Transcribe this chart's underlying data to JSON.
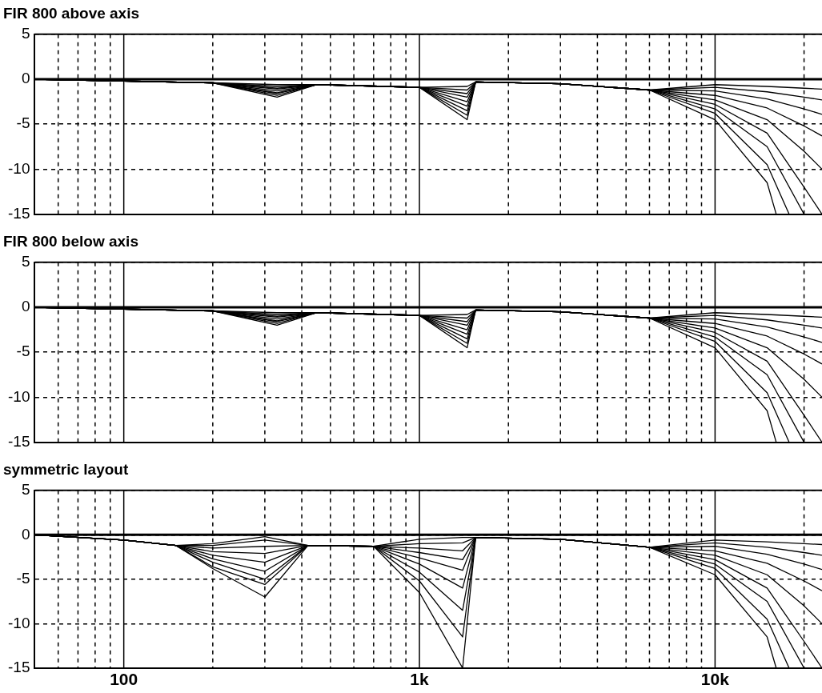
{
  "chart_data": [
    {
      "type": "line",
      "title": "FIR 800 above axis",
      "log": "x",
      "grid": true,
      "tick_labels": "y",
      "xlim": [
        50,
        23000
      ],
      "ylim": [
        -15,
        5
      ],
      "yticks": [
        5,
        0,
        -5,
        -10,
        -15
      ],
      "xticks": [
        {
          "value": 60,
          "label": null
        },
        {
          "value": 70,
          "label": null
        },
        {
          "value": 80,
          "label": null
        },
        {
          "value": 90,
          "label": null
        },
        {
          "value": 100,
          "label": null
        },
        {
          "value": 200,
          "label": null
        },
        {
          "value": 300,
          "label": null
        },
        {
          "value": 400,
          "label": null
        },
        {
          "value": 500,
          "label": null
        },
        {
          "value": 600,
          "label": null
        },
        {
          "value": 700,
          "label": null
        },
        {
          "value": 800,
          "label": null
        },
        {
          "value": 900,
          "label": null
        },
        {
          "value": 1000,
          "label": null
        },
        {
          "value": 2000,
          "label": null
        },
        {
          "value": 3000,
          "label": null
        },
        {
          "value": 4000,
          "label": null
        },
        {
          "value": 5000,
          "label": null
        },
        {
          "value": 6000,
          "label": null
        },
        {
          "value": 7000,
          "label": null
        },
        {
          "value": 8000,
          "label": null
        },
        {
          "value": 9000,
          "label": null
        },
        {
          "value": 10000,
          "label": null
        },
        {
          "value": 20000,
          "label": null
        }
      ],
      "ref_lines": [
        {
          "axis": "y",
          "value": 0,
          "color": "#000000"
        }
      ],
      "series": [
        {
          "color": "#000000",
          "x": [
            50,
            100,
            200,
            330,
            450,
            1000,
            1450,
            1550,
            3000,
            6000,
            10000,
            15000,
            20000,
            23000
          ],
          "values": [
            0,
            -0.2,
            -0.4,
            -0.6,
            -0.6,
            -0.9,
            -0.8,
            -0.3,
            -0.5,
            -1.2,
            -0.6,
            -0.8,
            -1.0,
            -1.1
          ]
        },
        {
          "color": "#000000",
          "x": [
            50,
            100,
            200,
            330,
            450,
            1000,
            1450,
            1550,
            3000,
            6000,
            10000,
            15000,
            20000,
            23000
          ],
          "values": [
            0,
            -0.2,
            -0.4,
            -0.8,
            -0.6,
            -0.9,
            -1.2,
            -0.3,
            -0.5,
            -1.2,
            -0.9,
            -1.4,
            -2.0,
            -2.3
          ]
        },
        {
          "color": "#000000",
          "x": [
            50,
            100,
            200,
            330,
            450,
            1000,
            1450,
            1550,
            3000,
            6000,
            10000,
            15000,
            20000,
            23000
          ],
          "values": [
            0,
            -0.2,
            -0.4,
            -1.0,
            -0.6,
            -0.9,
            -1.6,
            -0.3,
            -0.5,
            -1.2,
            -1.3,
            -2.2,
            -3.3,
            -3.9
          ]
        },
        {
          "color": "#000000",
          "x": [
            50,
            100,
            200,
            330,
            450,
            1000,
            1450,
            1550,
            3000,
            6000,
            10000,
            15000,
            20000,
            23000
          ],
          "values": [
            0,
            -0.2,
            -0.4,
            -1.1,
            -0.6,
            -0.9,
            -2.0,
            -0.3,
            -0.5,
            -1.2,
            -1.8,
            -3.2,
            -5.2,
            -6.3
          ]
        },
        {
          "color": "#000000",
          "x": [
            50,
            100,
            200,
            330,
            450,
            1000,
            1450,
            1550,
            3000,
            6000,
            10000,
            15000,
            20000,
            23000
          ],
          "values": [
            0,
            -0.2,
            -0.4,
            -1.3,
            -0.6,
            -0.9,
            -2.5,
            -0.3,
            -0.5,
            -1.2,
            -2.3,
            -4.5,
            -8.0,
            -10
          ]
        },
        {
          "color": "#000000",
          "x": [
            50,
            100,
            200,
            330,
            450,
            1000,
            1450,
            1550,
            3000,
            6000,
            10000,
            15000,
            20000,
            23000
          ],
          "values": [
            0,
            -0.2,
            -0.4,
            -1.5,
            -0.6,
            -0.9,
            -3.0,
            -0.3,
            -0.5,
            -1.2,
            -2.8,
            -6.0,
            -12,
            -15
          ]
        },
        {
          "color": "#000000",
          "x": [
            50,
            100,
            200,
            330,
            450,
            1000,
            1450,
            1550,
            3000,
            6000,
            10000,
            15000,
            20000
          ],
          "values": [
            0,
            -0.2,
            -0.4,
            -1.6,
            -0.6,
            -0.9,
            -3.5,
            -0.3,
            -0.5,
            -1.2,
            -3.3,
            -7.5,
            -15
          ]
        },
        {
          "color": "#000000",
          "x": [
            50,
            100,
            200,
            330,
            450,
            1000,
            1450,
            1550,
            3000,
            6000,
            10000,
            15000,
            17800
          ],
          "values": [
            0,
            -0.2,
            -0.4,
            -1.8,
            -0.6,
            -0.9,
            -4.0,
            -0.3,
            -0.5,
            -1.2,
            -3.8,
            -9.5,
            -15
          ]
        },
        {
          "color": "#000000",
          "x": [
            50,
            100,
            200,
            330,
            450,
            1000,
            1450,
            1550,
            3000,
            6000,
            10000,
            15000,
            16100
          ],
          "values": [
            0,
            -0.2,
            -0.4,
            -2.0,
            -0.6,
            -0.9,
            -4.5,
            -0.3,
            -0.5,
            -1.2,
            -4.5,
            -11.5,
            -15
          ]
        }
      ]
    },
    {
      "type": "line",
      "title": "FIR 800 below axis",
      "log": "x",
      "grid": true,
      "tick_labels": "y",
      "xlim": [
        50,
        23000
      ],
      "ylim": [
        -15,
        5
      ],
      "yticks": [
        5,
        0,
        -5,
        -10,
        -15
      ],
      "xticks": [
        {
          "value": 60,
          "label": null
        },
        {
          "value": 70,
          "label": null
        },
        {
          "value": 80,
          "label": null
        },
        {
          "value": 90,
          "label": null
        },
        {
          "value": 100,
          "label": null
        },
        {
          "value": 200,
          "label": null
        },
        {
          "value": 300,
          "label": null
        },
        {
          "value": 400,
          "label": null
        },
        {
          "value": 500,
          "label": null
        },
        {
          "value": 600,
          "label": null
        },
        {
          "value": 700,
          "label": null
        },
        {
          "value": 800,
          "label": null
        },
        {
          "value": 900,
          "label": null
        },
        {
          "value": 1000,
          "label": null
        },
        {
          "value": 2000,
          "label": null
        },
        {
          "value": 3000,
          "label": null
        },
        {
          "value": 4000,
          "label": null
        },
        {
          "value": 5000,
          "label": null
        },
        {
          "value": 6000,
          "label": null
        },
        {
          "value": 7000,
          "label": null
        },
        {
          "value": 8000,
          "label": null
        },
        {
          "value": 9000,
          "label": null
        },
        {
          "value": 10000,
          "label": null
        },
        {
          "value": 20000,
          "label": null
        }
      ],
      "ref_lines": [
        {
          "axis": "y",
          "value": 0,
          "color": "#000000"
        }
      ],
      "series": [
        {
          "color": "#000000",
          "x": [
            50,
            100,
            200,
            330,
            450,
            1000,
            1450,
            1550,
            3000,
            6000,
            10000,
            15000,
            20000,
            23000
          ],
          "values": [
            0,
            -0.2,
            -0.4,
            -0.6,
            -0.6,
            -0.9,
            -0.8,
            -0.3,
            -0.5,
            -1.2,
            -0.6,
            -0.8,
            -1.0,
            -1.1
          ]
        },
        {
          "color": "#000000",
          "x": [
            50,
            100,
            200,
            330,
            450,
            1000,
            1450,
            1550,
            3000,
            6000,
            10000,
            15000,
            20000,
            23000
          ],
          "values": [
            0,
            -0.2,
            -0.4,
            -0.8,
            -0.6,
            -0.9,
            -1.2,
            -0.3,
            -0.5,
            -1.2,
            -0.9,
            -1.4,
            -2.0,
            -2.3
          ]
        },
        {
          "color": "#000000",
          "x": [
            50,
            100,
            200,
            330,
            450,
            1000,
            1450,
            1550,
            3000,
            6000,
            10000,
            15000,
            20000,
            23000
          ],
          "values": [
            0,
            -0.2,
            -0.4,
            -1.0,
            -0.6,
            -0.9,
            -1.6,
            -0.3,
            -0.5,
            -1.2,
            -1.3,
            -2.2,
            -3.3,
            -3.9
          ]
        },
        {
          "color": "#000000",
          "x": [
            50,
            100,
            200,
            330,
            450,
            1000,
            1450,
            1550,
            3000,
            6000,
            10000,
            15000,
            20000,
            23000
          ],
          "values": [
            0,
            -0.2,
            -0.4,
            -1.1,
            -0.6,
            -0.9,
            -2.0,
            -0.3,
            -0.5,
            -1.2,
            -1.8,
            -3.2,
            -5.2,
            -6.3
          ]
        },
        {
          "color": "#000000",
          "x": [
            50,
            100,
            200,
            330,
            450,
            1000,
            1450,
            1550,
            3000,
            6000,
            10000,
            15000,
            20000,
            23000
          ],
          "values": [
            0,
            -0.2,
            -0.4,
            -1.3,
            -0.6,
            -0.9,
            -2.5,
            -0.3,
            -0.5,
            -1.2,
            -2.3,
            -4.5,
            -8.0,
            -10
          ]
        },
        {
          "color": "#000000",
          "x": [
            50,
            100,
            200,
            330,
            450,
            1000,
            1450,
            1550,
            3000,
            6000,
            10000,
            15000,
            20000,
            23000
          ],
          "values": [
            0,
            -0.2,
            -0.4,
            -1.5,
            -0.6,
            -0.9,
            -3.0,
            -0.3,
            -0.5,
            -1.2,
            -2.8,
            -6.0,
            -12,
            -15
          ]
        },
        {
          "color": "#000000",
          "x": [
            50,
            100,
            200,
            330,
            450,
            1000,
            1450,
            1550,
            3000,
            6000,
            10000,
            15000,
            20000
          ],
          "values": [
            0,
            -0.2,
            -0.4,
            -1.6,
            -0.6,
            -0.9,
            -3.5,
            -0.3,
            -0.5,
            -1.2,
            -3.3,
            -7.5,
            -15
          ]
        },
        {
          "color": "#000000",
          "x": [
            50,
            100,
            200,
            330,
            450,
            1000,
            1450,
            1550,
            3000,
            6000,
            10000,
            15000,
            17800
          ],
          "values": [
            0,
            -0.2,
            -0.4,
            -1.8,
            -0.6,
            -0.9,
            -4.0,
            -0.3,
            -0.5,
            -1.2,
            -3.8,
            -9.5,
            -15
          ]
        },
        {
          "color": "#000000",
          "x": [
            50,
            100,
            200,
            330,
            450,
            1000,
            1450,
            1550,
            3000,
            6000,
            10000,
            15000,
            16100
          ],
          "values": [
            0,
            -0.2,
            -0.4,
            -2.0,
            -0.6,
            -0.9,
            -4.5,
            -0.3,
            -0.5,
            -1.2,
            -4.5,
            -11.5,
            -15
          ]
        }
      ]
    },
    {
      "type": "line",
      "title": "symmetric layout",
      "log": "x",
      "grid": true,
      "xlim": [
        50,
        23000
      ],
      "ylim": [
        -15,
        5
      ],
      "yticks": [
        5,
        0,
        -5,
        -10,
        -15
      ],
      "xticks": [
        {
          "value": 60,
          "label": null
        },
        {
          "value": 70,
          "label": null
        },
        {
          "value": 80,
          "label": null
        },
        {
          "value": 90,
          "label": null
        },
        100,
        {
          "value": 200,
          "label": null
        },
        {
          "value": 300,
          "label": null
        },
        {
          "value": 400,
          "label": null
        },
        {
          "value": 500,
          "label": null
        },
        {
          "value": 600,
          "label": null
        },
        {
          "value": 700,
          "label": null
        },
        {
          "value": 800,
          "label": null
        },
        {
          "value": 900,
          "label": null
        },
        {
          "value": 1000,
          "label": "1k"
        },
        {
          "value": 2000,
          "label": null
        },
        {
          "value": 3000,
          "label": null
        },
        {
          "value": 4000,
          "label": null
        },
        {
          "value": 5000,
          "label": null
        },
        {
          "value": 6000,
          "label": null
        },
        {
          "value": 7000,
          "label": null
        },
        {
          "value": 8000,
          "label": null
        },
        {
          "value": 9000,
          "label": null
        },
        {
          "value": 10000,
          "label": "10k"
        },
        {
          "value": 20000,
          "label": null
        }
      ],
      "ref_lines": [
        {
          "axis": "y",
          "value": 0,
          "color": "#000000"
        }
      ],
      "series": [
        {
          "color": "#000000",
          "x": [
            50,
            100,
            150,
            200,
            300,
            420,
            700,
            1000,
            1400,
            1550,
            3000,
            6000,
            10000,
            15000,
            20000,
            23000
          ],
          "values": [
            0,
            -0.6,
            -1.2,
            -1.0,
            -0.2,
            -1.2,
            -1.3,
            -0.5,
            -0.3,
            -0.3,
            -0.5,
            -1.4,
            -0.6,
            -0.8,
            -1.0,
            -1.1
          ]
        },
        {
          "color": "#000000",
          "x": [
            50,
            100,
            150,
            200,
            300,
            420,
            700,
            1000,
            1400,
            1550,
            3000,
            6000,
            10000,
            15000,
            20000,
            23000
          ],
          "values": [
            0,
            -0.6,
            -1.2,
            -1.2,
            -0.6,
            -1.2,
            -1.3,
            -1.0,
            -0.9,
            -0.3,
            -0.5,
            -1.4,
            -0.9,
            -1.4,
            -2.0,
            -2.3
          ]
        },
        {
          "color": "#000000",
          "x": [
            50,
            100,
            150,
            200,
            300,
            420,
            700,
            1000,
            1400,
            1550,
            3000,
            6000,
            10000,
            15000,
            20000,
            23000
          ],
          "values": [
            0,
            -0.6,
            -1.2,
            -1.5,
            -1.3,
            -1.2,
            -1.3,
            -1.5,
            -1.8,
            -0.3,
            -0.5,
            -1.4,
            -1.3,
            -2.2,
            -3.3,
            -3.9
          ]
        },
        {
          "color": "#000000",
          "x": [
            50,
            100,
            150,
            200,
            300,
            420,
            700,
            1000,
            1400,
            1550,
            3000,
            6000,
            10000,
            15000,
            20000,
            23000
          ],
          "values": [
            0,
            -0.6,
            -1.2,
            -1.9,
            -2.1,
            -1.2,
            -1.3,
            -2.0,
            -2.8,
            -0.3,
            -0.5,
            -1.4,
            -1.8,
            -3.2,
            -5.2,
            -6.3
          ]
        },
        {
          "color": "#000000",
          "x": [
            50,
            100,
            150,
            200,
            300,
            420,
            700,
            1000,
            1400,
            1550,
            3000,
            6000,
            10000,
            15000,
            20000,
            23000
          ],
          "values": [
            0,
            -0.6,
            -1.2,
            -2.3,
            -3.1,
            -1.2,
            -1.3,
            -2.6,
            -4.0,
            -0.3,
            -0.5,
            -1.4,
            -2.3,
            -4.5,
            -8.0,
            -10
          ]
        },
        {
          "color": "#000000",
          "x": [
            50,
            100,
            150,
            200,
            300,
            420,
            700,
            1000,
            1400,
            1550,
            3000,
            6000,
            10000,
            15000,
            20000,
            23000
          ],
          "values": [
            0,
            -0.6,
            -1.2,
            -2.7,
            -4.1,
            -1.2,
            -1.3,
            -3.3,
            -6.0,
            -0.3,
            -0.5,
            -1.4,
            -2.8,
            -6.0,
            -12,
            -15
          ]
        },
        {
          "color": "#000000",
          "x": [
            50,
            100,
            150,
            200,
            300,
            420,
            700,
            1000,
            1400,
            1550,
            3000,
            6000,
            10000,
            15000,
            20000
          ],
          "values": [
            0,
            -0.6,
            -1.2,
            -3.1,
            -5.0,
            -1.2,
            -1.3,
            -4.2,
            -8.5,
            -0.3,
            -0.5,
            -1.4,
            -3.3,
            -7.5,
            -15
          ]
        },
        {
          "color": "#000000",
          "x": [
            50,
            100,
            150,
            200,
            300,
            420,
            700,
            1000,
            1400,
            1550,
            3000,
            6000,
            10000,
            15000,
            17800
          ],
          "values": [
            0,
            -0.6,
            -1.2,
            -3.6,
            -5.6,
            -1.2,
            -1.3,
            -5.2,
            -11.5,
            -0.3,
            -0.5,
            -1.4,
            -3.8,
            -9.5,
            -15
          ]
        },
        {
          "color": "#000000",
          "x": [
            50,
            100,
            150,
            200,
            300,
            420,
            700,
            1000,
            1400,
            1550,
            3000,
            6000,
            10000,
            15000,
            16100
          ],
          "values": [
            0,
            -0.6,
            -1.2,
            -3.8,
            -7.0,
            -1.2,
            -1.3,
            -6.5,
            -15,
            -0.3,
            -0.5,
            -1.4,
            -4.5,
            -11.5,
            -15
          ]
        }
      ]
    }
  ]
}
